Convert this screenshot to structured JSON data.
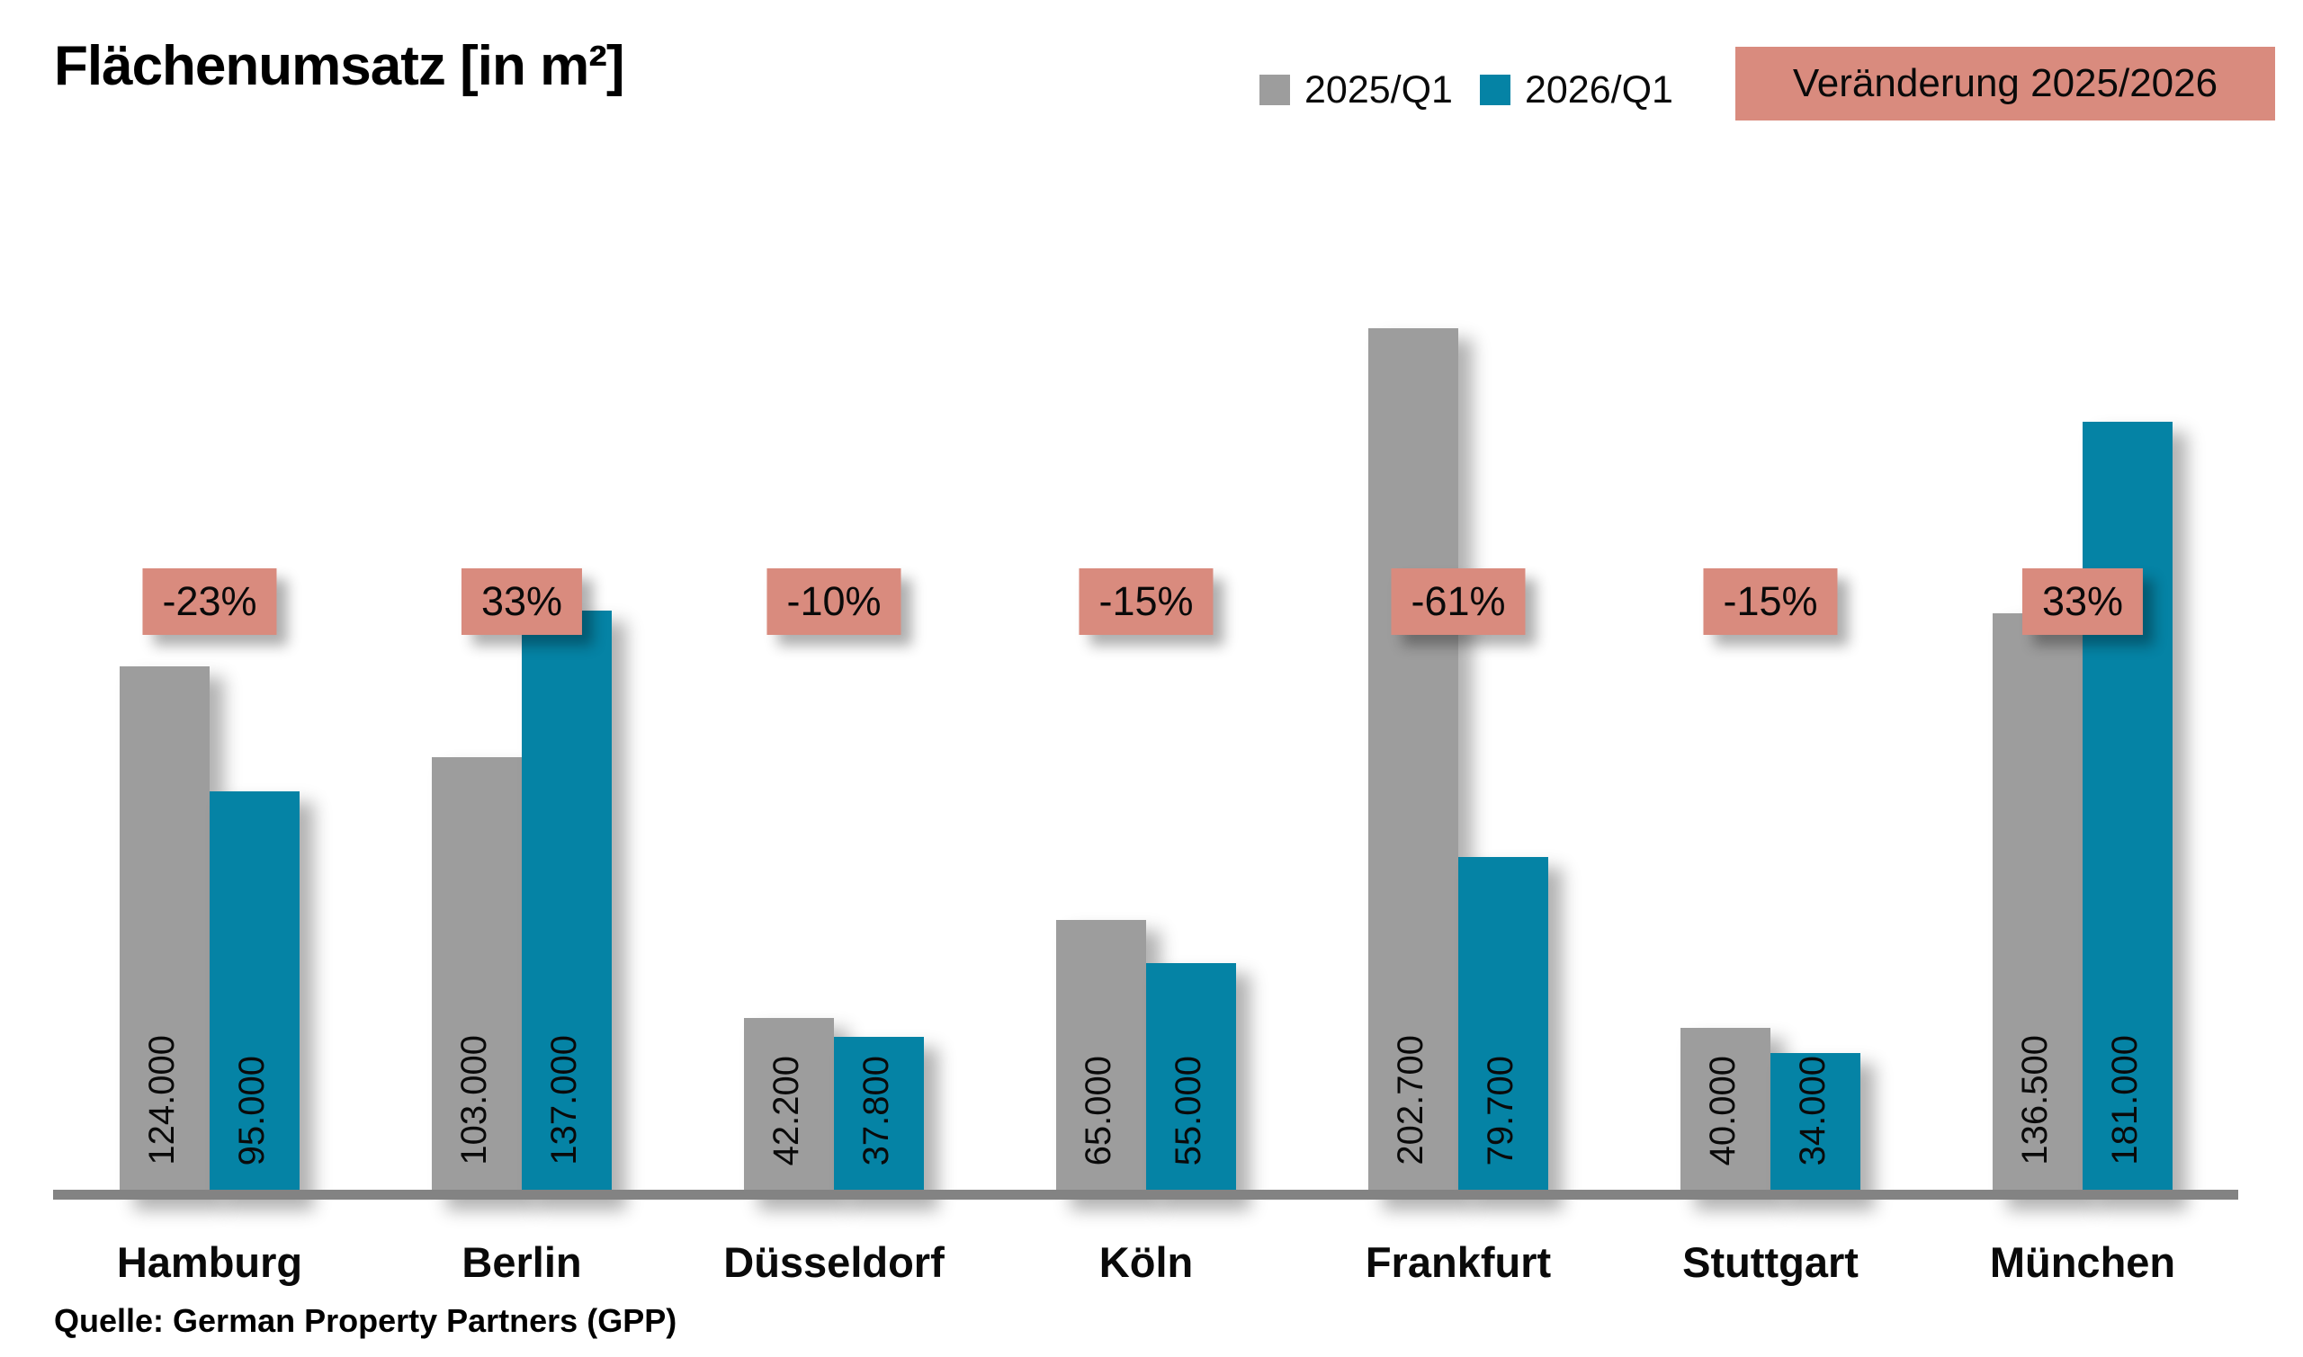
{
  "title": "Flächenumsatz [in m²]",
  "source_note": "Quelle: German Property Partners (GPP)",
  "legend": {
    "change_badge_label": "Veränderung 2025/2026"
  },
  "colors": {
    "series_2025": "#9d9d9d",
    "series_2026": "#0583a5",
    "change_badge_bg": "#d98b7e",
    "axis_line": "#838383",
    "text": "#0a0a0a"
  },
  "chart_data": {
    "type": "bar",
    "title": "Flächenumsatz [in m²]",
    "categories": [
      "Hamburg",
      "Berlin",
      "Düsseldorf",
      "Köln",
      "Frankfurt",
      "Stuttgart",
      "München"
    ],
    "series": [
      {
        "name": "2025/Q1",
        "color": "#9d9d9d",
        "values": [
          124000,
          103000,
          42200,
          65000,
          202700,
          40000,
          136500
        ]
      },
      {
        "name": "2026/Q1",
        "color": "#0583a5",
        "values": [
          95000,
          137000,
          37800,
          55000,
          79700,
          34000,
          181000
        ]
      }
    ],
    "value_labels": [
      [
        "124.000",
        "95.000"
      ],
      [
        "103.000",
        "137.000"
      ],
      [
        "42.200",
        "37.800"
      ],
      [
        "65.000",
        "55.000"
      ],
      [
        "202.700",
        "79.700"
      ],
      [
        "40.000",
        "34.000"
      ],
      [
        "136.500",
        "181.000"
      ]
    ],
    "change_labels": [
      "-23%",
      "33%",
      "-10%",
      "-15%",
      "-61%",
      "-15%",
      "33%"
    ],
    "xlabel": "",
    "ylabel": "",
    "ylim": [
      0,
      210000
    ],
    "grid": false,
    "legend_position": "top-right"
  }
}
